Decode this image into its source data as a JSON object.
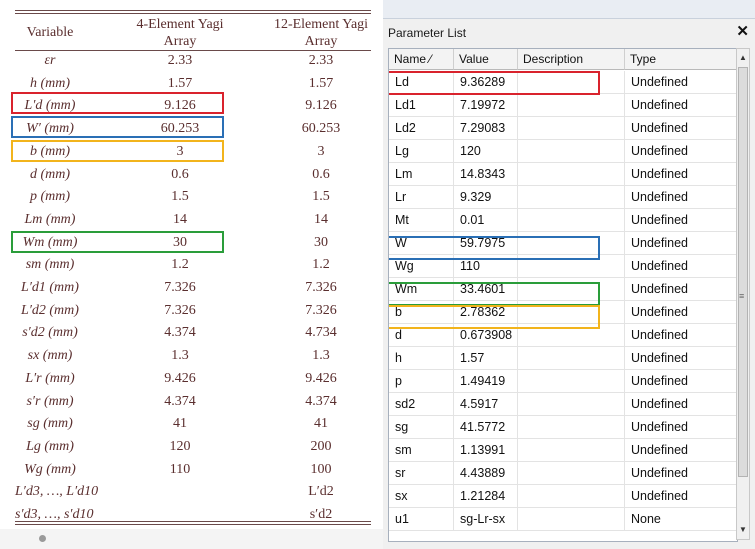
{
  "paper_table": {
    "headers": {
      "variable": "Variable",
      "col1_line1": "4-Element Yagi",
      "col1_line2": "Array",
      "col2_line1": "12-Element Yagi",
      "col2_line2": "Array"
    },
    "rows": [
      {
        "variable": "εr",
        "v4": "2.33",
        "v12": "2.33"
      },
      {
        "variable": "h (mm)",
        "v4": "1.57",
        "v12": "1.57"
      },
      {
        "variable": "L′d (mm)",
        "v4": "9.126",
        "v12": "9.126"
      },
      {
        "variable": "W′ (mm)",
        "v4": "60.253",
        "v12": "60.253"
      },
      {
        "variable": "b (mm)",
        "v4": "3",
        "v12": "3"
      },
      {
        "variable": "d (mm)",
        "v4": "0.6",
        "v12": "0.6"
      },
      {
        "variable": "p (mm)",
        "v4": "1.5",
        "v12": "1.5"
      },
      {
        "variable": "Lm (mm)",
        "v4": "14",
        "v12": "14"
      },
      {
        "variable": "Wm (mm)",
        "v4": "30",
        "v12": "30"
      },
      {
        "variable": "sm (mm)",
        "v4": "1.2",
        "v12": "1.2"
      },
      {
        "variable": "L′d1 (mm)",
        "v4": "7.326",
        "v12": "7.326"
      },
      {
        "variable": "L′d2 (mm)",
        "v4": "7.326",
        "v12": "7.326"
      },
      {
        "variable": "s′d2 (mm)",
        "v4": "4.374",
        "v12": "4.734"
      },
      {
        "variable": "sx (mm)",
        "v4": "1.3",
        "v12": "1.3"
      },
      {
        "variable": "L′r (mm)",
        "v4": "9.426",
        "v12": "9.426"
      },
      {
        "variable": "s′r (mm)",
        "v4": "4.374",
        "v12": "4.374"
      },
      {
        "variable": "sg (mm)",
        "v4": "41",
        "v12": "41"
      },
      {
        "variable": "Lg (mm)",
        "v4": "120",
        "v12": "200"
      },
      {
        "variable": "Wg (mm)",
        "v4": "110",
        "v12": "100"
      },
      {
        "variable": "L′d3, …, L′d10",
        "v4": "",
        "v12": "L′d2"
      },
      {
        "variable": "s′d3, …, s′d10",
        "v4": "",
        "v12": "s′d2"
      }
    ]
  },
  "panel": {
    "title": "Parameter List",
    "close_glyph": "✕",
    "columns": [
      "Name ⁄",
      "Value",
      "Description",
      "Type"
    ],
    "rows": [
      {
        "name": "Ld",
        "value": "9.36289",
        "description": "",
        "type": "Undefined"
      },
      {
        "name": "Ld1",
        "value": "7.19972",
        "description": "",
        "type": "Undefined"
      },
      {
        "name": "Ld2",
        "value": "7.29083",
        "description": "",
        "type": "Undefined"
      },
      {
        "name": "Lg",
        "value": "120",
        "description": "",
        "type": "Undefined"
      },
      {
        "name": "Lm",
        "value": "14.8343",
        "description": "",
        "type": "Undefined"
      },
      {
        "name": "Lr",
        "value": "9.329",
        "description": "",
        "type": "Undefined"
      },
      {
        "name": "Mt",
        "value": "0.01",
        "description": "",
        "type": "Undefined"
      },
      {
        "name": "W",
        "value": "59.7975",
        "description": "",
        "type": "Undefined"
      },
      {
        "name": "Wg",
        "value": "110",
        "description": "",
        "type": "Undefined"
      },
      {
        "name": "Wm",
        "value": "33.4601",
        "description": "",
        "type": "Undefined"
      },
      {
        "name": "b",
        "value": "2.78362",
        "description": "",
        "type": "Undefined"
      },
      {
        "name": "d",
        "value": "0.673908",
        "description": "",
        "type": "Undefined"
      },
      {
        "name": "h",
        "value": "1.57",
        "description": "",
        "type": "Undefined"
      },
      {
        "name": "p",
        "value": "1.49419",
        "description": "",
        "type": "Undefined"
      },
      {
        "name": "sd2",
        "value": "4.5917",
        "description": "",
        "type": "Undefined"
      },
      {
        "name": "sg",
        "value": "41.5772",
        "description": "",
        "type": "Undefined"
      },
      {
        "name": "sm",
        "value": "1.13991",
        "description": "",
        "type": "Undefined"
      },
      {
        "name": "sr",
        "value": "4.43889",
        "description": "",
        "type": "Undefined"
      },
      {
        "name": "sx",
        "value": "1.21284",
        "description": "",
        "type": "Undefined"
      },
      {
        "name": "u1",
        "value": "sg-Lr-sx",
        "description": "",
        "type": "None"
      }
    ]
  },
  "highlight_colors": {
    "red": "#d9232d",
    "blue": "#2a6fb5",
    "yellow": "#f2b41c",
    "green": "#2a9d3a"
  }
}
